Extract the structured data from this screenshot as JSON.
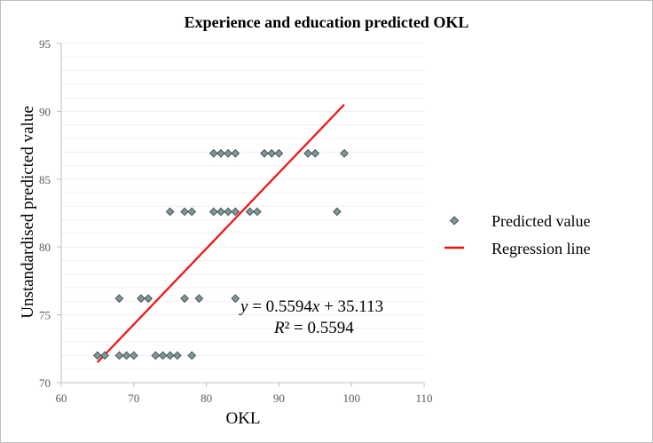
{
  "colors": {
    "marker_fill": "#7d9799",
    "marker_stroke": "#3f4a4b",
    "regression_line": "#ee1111",
    "gridline": "#efefef",
    "axis": "#bfbfbf"
  },
  "chart_data": {
    "type": "scatter",
    "title": "Experience and education predicted OKL",
    "xlabel": "OKL",
    "ylabel": "Unstandardised predicted value",
    "xlim": [
      60,
      110
    ],
    "ylim": [
      70,
      95
    ],
    "x_ticks": [
      "60",
      "70",
      "80",
      "90",
      "100",
      "110"
    ],
    "y_ticks": [
      "70",
      "75",
      "80",
      "85",
      "90",
      "95"
    ],
    "minor_gridlines": true,
    "legend_position": "right",
    "series": [
      {
        "name": "Predicted value",
        "marker": "diamond",
        "points": [
          [
            65,
            72.0
          ],
          [
            66,
            72.0
          ],
          [
            68,
            72.0
          ],
          [
            69,
            72.0
          ],
          [
            70,
            72.0
          ],
          [
            73,
            72.0
          ],
          [
            74,
            72.0
          ],
          [
            75,
            72.0
          ],
          [
            76,
            72.0
          ],
          [
            78,
            72.0
          ],
          [
            68,
            76.2
          ],
          [
            71,
            76.2
          ],
          [
            72,
            76.2
          ],
          [
            77,
            76.2
          ],
          [
            79,
            76.2
          ],
          [
            84,
            76.2
          ],
          [
            75,
            82.6
          ],
          [
            77,
            82.6
          ],
          [
            78,
            82.6
          ],
          [
            81,
            82.6
          ],
          [
            82,
            82.6
          ],
          [
            83,
            82.6
          ],
          [
            84,
            82.6
          ],
          [
            86,
            82.6
          ],
          [
            87,
            82.6
          ],
          [
            98,
            82.6
          ],
          [
            81,
            86.9
          ],
          [
            82,
            86.9
          ],
          [
            83,
            86.9
          ],
          [
            84,
            86.9
          ],
          [
            88,
            86.9
          ],
          [
            89,
            86.9
          ],
          [
            90,
            86.9
          ],
          [
            94,
            86.9
          ],
          [
            95,
            86.9
          ],
          [
            99,
            86.9
          ]
        ]
      },
      {
        "name": "Regression line",
        "type": "line",
        "points": [
          [
            65,
            71.5
          ],
          [
            99,
            90.5
          ]
        ]
      }
    ],
    "annotations": {
      "equation": {
        "y": "y",
        "mid": " = 0.5594",
        "x": "x",
        "tail": " + 35.113"
      },
      "r_squared": {
        "R": "R",
        "rest": "² = 0.5594"
      }
    },
    "legend": [
      {
        "label": "Predicted value",
        "symbol": "diamond"
      },
      {
        "label": "Regression line",
        "symbol": "line"
      }
    ]
  }
}
